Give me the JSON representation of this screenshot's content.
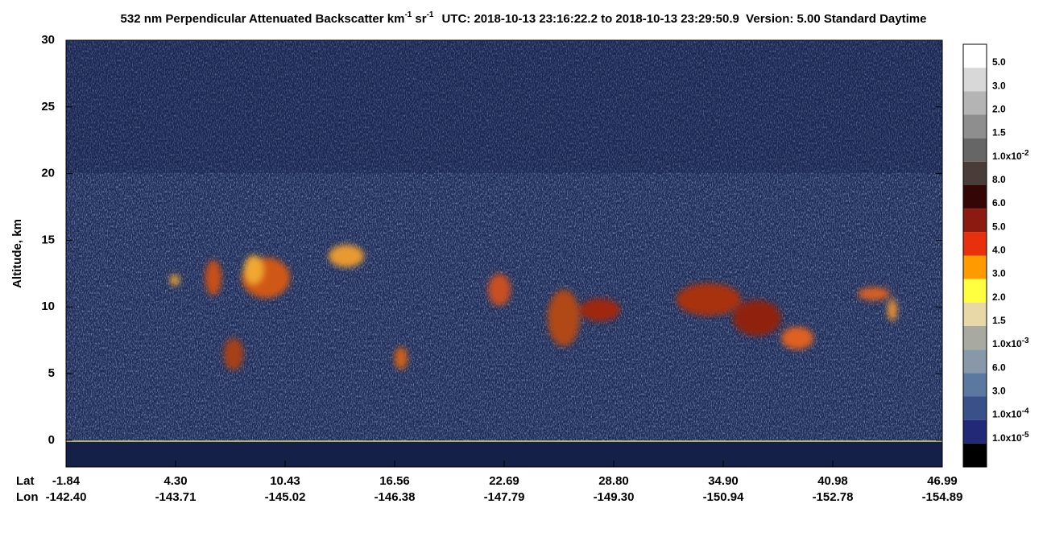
{
  "chart_data": {
    "type": "curtain",
    "title": {
      "main": "532 nm Perpendicular Attenuated Backscatter km",
      "unit_exp_1": "-1",
      "unit_2": "sr",
      "unit_exp_2": "-1",
      "rest": "UTC: 2018-10-13 23:16:22.2 to 2018-10-13 23:29:50.9  Version: 5.00 Standard Daytime"
    },
    "y_label": "Altitude, km",
    "ylim": [
      -2,
      30
    ],
    "yticks": [
      0,
      5,
      10,
      15,
      20,
      25,
      30
    ],
    "x_rows": [
      {
        "name": "Lat",
        "labels": [
          "-1.84",
          "4.30",
          "10.43",
          "16.56",
          "22.69",
          "28.80",
          "34.90",
          "40.98",
          "46.99"
        ]
      },
      {
        "name": "Lon",
        "labels": [
          "-142.40",
          "-143.71",
          "-145.02",
          "-146.38",
          "-147.79",
          "-149.30",
          "-150.94",
          "-152.78",
          "-154.89"
        ]
      }
    ],
    "colorbar": {
      "colors": [
        "#ffffff",
        "#d8d8d8",
        "#b4b4b4",
        "#8e8e8e",
        "#666666",
        "#4a3c38",
        "#340606",
        "#8c1a10",
        "#e8300c",
        "#ff9a00",
        "#ffff40",
        "#e8d8a8",
        "#a8aaa2",
        "#8898a8",
        "#5a78a0",
        "#3a5088",
        "#222a78",
        "#000000"
      ],
      "labels": [
        {
          "text": "5.0"
        },
        {
          "text": "3.0"
        },
        {
          "text": "2.0"
        },
        {
          "text": "1.5"
        },
        {
          "text": "1.0x10",
          "exp": "-2"
        },
        {
          "text": "8.0"
        },
        {
          "text": "6.0"
        },
        {
          "text": "5.0"
        },
        {
          "text": "4.0"
        },
        {
          "text": "3.0"
        },
        {
          "text": "2.0"
        },
        {
          "text": "1.5"
        },
        {
          "text": "1.0x10",
          "exp": "-3"
        },
        {
          "text": "6.0"
        },
        {
          "text": "3.0"
        },
        {
          "text": "1.0x10",
          "exp": "-4"
        },
        {
          "text": "1.0x10",
          "exp": "-5"
        }
      ]
    }
  }
}
